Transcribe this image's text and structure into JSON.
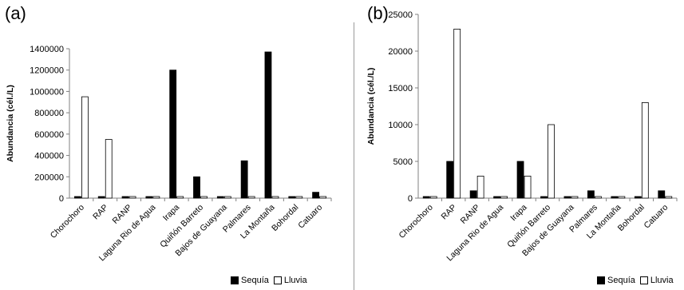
{
  "colors": {
    "sequia": "#000000",
    "lluvia": "#ffffff",
    "axis": "#808080"
  },
  "chart_data": [
    {
      "panel": "(a)",
      "type": "bar",
      "ylabel": "Abundancia  (cél./L)",
      "ylim": [
        0,
        1400000
      ],
      "yticks": [
        "0",
        "200000",
        "400000",
        "600000",
        "800000",
        "1000000",
        "1200000",
        "1400000"
      ],
      "categories": [
        "Chorochoro",
        "RAP",
        "RANP",
        "Laguna Rio de Agua",
        "Irapa",
        "Quiñón Barreto",
        "Bajos de Guayana",
        "Palmares",
        "La Montaña",
        "Bohordal",
        "Catuaro"
      ],
      "series": [
        {
          "name": "Sequía",
          "values": [
            0,
            0,
            0,
            0,
            1200000,
            200000,
            0,
            350000,
            1370000,
            0,
            55000
          ]
        },
        {
          "name": "Lluvia",
          "values": [
            950000,
            550000,
            0,
            0,
            0,
            0,
            0,
            0,
            0,
            0,
            0
          ]
        }
      ],
      "legend": "bottom-right",
      "grid": false
    },
    {
      "panel": "(b)",
      "type": "bar",
      "ylabel": "Abundancia  (cél./L)",
      "ylim": [
        0,
        25000
      ],
      "yticks": [
        "0",
        "5000",
        "10000",
        "15000",
        "20000",
        "25000"
      ],
      "categories": [
        "Chorochoro",
        "RAP",
        "RANP",
        "Laguna Rio de Agua",
        "Irapa",
        "Quiñón Barreto",
        "Bajos de Guayana",
        "Palmares",
        "La Montaña",
        "Bohordal",
        "Catuaro"
      ],
      "series": [
        {
          "name": "Sequía",
          "values": [
            0,
            5000,
            1000,
            0,
            5000,
            0,
            0,
            1000,
            0,
            0,
            1000
          ]
        },
        {
          "name": "Lluvia",
          "values": [
            0,
            23000,
            3000,
            0,
            3000,
            10000,
            0,
            0,
            0,
            13000,
            0
          ]
        }
      ],
      "legend": "bottom-right",
      "grid": false
    }
  ]
}
